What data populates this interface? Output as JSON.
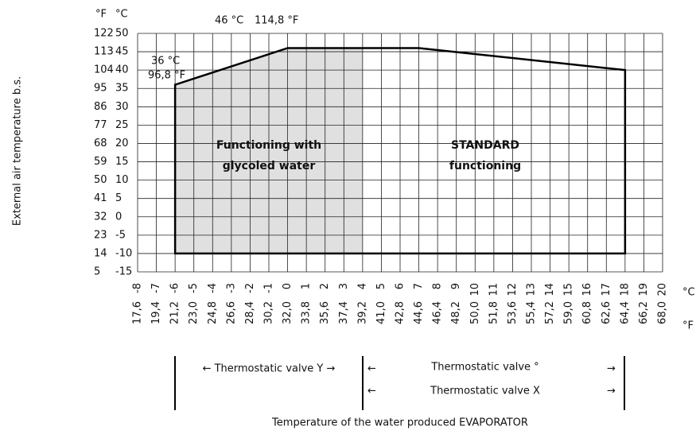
{
  "chart_data": {
    "type": "envelope",
    "ylabel": "External air temperature b.s.",
    "xlabel": "Temperature of the water produced EVAPORATOR",
    "y_unit": "°C",
    "y2_unit": "°F",
    "x_unit": "°C",
    "x2_unit": "°F",
    "xlim": [
      -8,
      20
    ],
    "xticks": [
      -8,
      -7,
      -6,
      -5,
      -4,
      -3,
      -2,
      -1,
      0,
      1,
      2,
      3,
      4,
      5,
      6,
      7,
      8,
      9,
      10,
      11,
      12,
      13,
      14,
      15,
      16,
      17,
      18,
      19,
      20
    ],
    "x2lim": [
      17.6,
      68.0
    ],
    "x2ticks": [
      {
        "value": 17.6,
        "label": "17,6"
      },
      {
        "value": 19.4,
        "label": "19,4"
      },
      {
        "value": 21.2,
        "label": "21,2"
      },
      {
        "value": 23.0,
        "label": "23,0"
      },
      {
        "value": 24.8,
        "label": "24,8"
      },
      {
        "value": 26.6,
        "label": "26,6"
      },
      {
        "value": 28.4,
        "label": "28,4"
      },
      {
        "value": 30.2,
        "label": "30,2"
      },
      {
        "value": 32.0,
        "label": "32,0"
      },
      {
        "value": 33.8,
        "label": "33,8"
      },
      {
        "value": 35.6,
        "label": "35,6"
      },
      {
        "value": 37.4,
        "label": "37,4"
      },
      {
        "value": 39.2,
        "label": "39,2"
      },
      {
        "value": 41.0,
        "label": "41,0"
      },
      {
        "value": 42.8,
        "label": "42,8"
      },
      {
        "value": 44.6,
        "label": "44,6"
      },
      {
        "value": 46.4,
        "label": "46,4"
      },
      {
        "value": 48.2,
        "label": "48,2"
      },
      {
        "value": 50.0,
        "label": "50,0"
      },
      {
        "value": 51.8,
        "label": "51,8"
      },
      {
        "value": 53.6,
        "label": "53,6"
      },
      {
        "value": 55.4,
        "label": "55,4"
      },
      {
        "value": 57.2,
        "label": "57,2"
      },
      {
        "value": 59.0,
        "label": "59,0"
      },
      {
        "value": 60.8,
        "label": "60,8"
      },
      {
        "value": 62.6,
        "label": "62,6"
      },
      {
        "value": 64.4,
        "label": "64,4"
      },
      {
        "value": 66.2,
        "label": "66,2"
      },
      {
        "value": 68.0,
        "label": "68,0"
      }
    ],
    "ylim": [
      -15,
      50
    ],
    "yticks": [
      50,
      45,
      40,
      35,
      30,
      25,
      20,
      15,
      10,
      5,
      0,
      -5,
      -10,
      -15
    ],
    "y2lim": [
      5,
      122
    ],
    "y2ticks": [
      122,
      113,
      104,
      95,
      86,
      77,
      68,
      59,
      50,
      41,
      32,
      23,
      14,
      5
    ],
    "grid": true,
    "series": [
      {
        "color": "#e0e0e0",
        "x": [
          -6,
          -6,
          0,
          4,
          4
        ],
        "values": [
          -10,
          36,
          46,
          46,
          -10
        ]
      },
      {
        "color": "#000000",
        "x": [
          -6,
          -6,
          0,
          7,
          18,
          18
        ],
        "values": [
          -10,
          36,
          46,
          46,
          40,
          -10
        ]
      }
    ],
    "annotations": [
      "36 °C",
      "96,8 °F",
      "46 °C",
      "114,8 °F"
    ],
    "regions": [
      [
        "Functioning with",
        "glycoled water"
      ],
      [
        "STANDARD",
        "functioning"
      ]
    ],
    "valves": [
      "← Thermostatic valve  Y →",
      "←",
      "Thermostatic valve °",
      "→",
      "←",
      "Thermostatic valve X",
      "→"
    ]
  }
}
